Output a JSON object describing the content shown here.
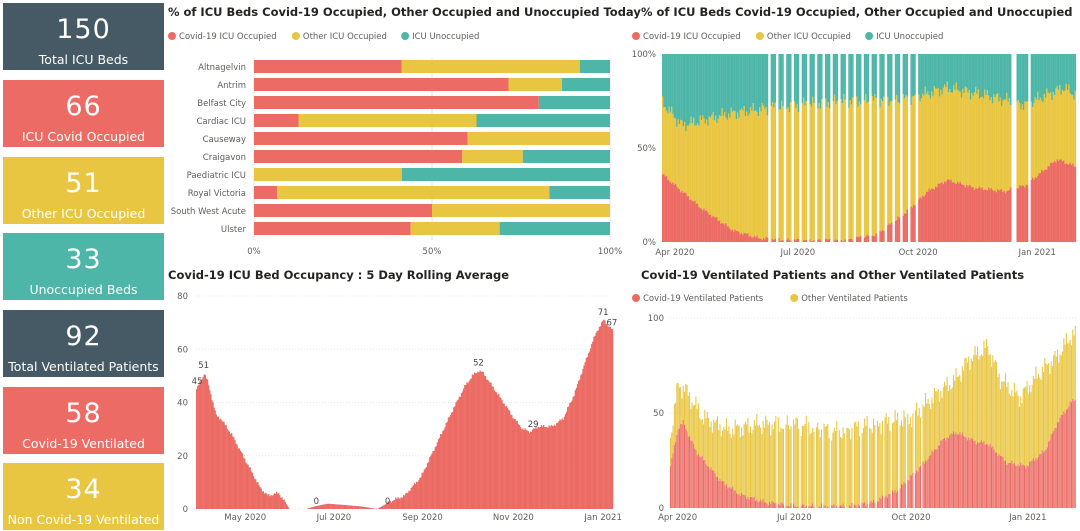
{
  "colors": {
    "covid": "#EC6B64",
    "other": "#E9C642",
    "unocc": "#4DB6A8",
    "dark": "#455A64",
    "axis": "#605E5C",
    "grid": "#E6E6E6"
  },
  "kpis": [
    {
      "value": "150",
      "label": "Total ICU Beds",
      "color": "#455A64"
    },
    {
      "value": "66",
      "label": "ICU Covid Occupied",
      "color": "#EC6B64"
    },
    {
      "value": "51",
      "label": "Other ICU Occupied",
      "color": "#E9C642"
    },
    {
      "value": "33",
      "label": "Unoccupied Beds",
      "color": "#4DB6A8"
    },
    {
      "value": "92",
      "label": "Total Ventilated Patients",
      "color": "#455A64"
    },
    {
      "value": "58",
      "label": "Covid-19 Ventilated",
      "color": "#EC6B64"
    },
    {
      "value": "34",
      "label": "Non Covid-19 Ventilated",
      "color": "#E9C642"
    }
  ],
  "legend_labels": {
    "covid_icu": "Covid-19 ICU Occupied",
    "other_icu": "Other ICU Occupied",
    "unocc_icu": "ICU Unoccupied",
    "covid_vent": "Covid-19 Ventilated Patients",
    "other_vent": "Other Ventilated Patients"
  },
  "chart_data": [
    {
      "type": "bar",
      "orientation": "horizontal-100%-stacked",
      "title": "% of ICU Beds Covid-19 Occupied, Other Occupied and Unoccupied Today",
      "categories": [
        "Altnagelvin",
        "Antrim",
        "Belfast City",
        "Cardiac ICU",
        "Causeway",
        "Craigavon",
        "Paediatric ICU",
        "Royal Victoria",
        "South West Acute",
        "Ulster"
      ],
      "series": [
        {
          "name": "Covid-19 ICU Occupied",
          "values": [
            41.5,
            71.5,
            80,
            12.5,
            60,
            58.5,
            0,
            6.5,
            50,
            44
          ]
        },
        {
          "name": "Other ICU Occupied",
          "values": [
            50,
            15,
            0,
            50,
            40,
            17,
            41.5,
            76.5,
            50,
            25
          ]
        },
        {
          "name": "ICU Unoccupied",
          "values": [
            8.5,
            13.5,
            20,
            37.5,
            0,
            24.5,
            58.5,
            17,
            0,
            31
          ]
        }
      ],
      "ticks": [
        "0%",
        "50%",
        "100%"
      ],
      "legend": "top-left"
    },
    {
      "type": "area",
      "title": "% of ICU Beds Covid-19 Occupied, Other Occupied and Unoccupied",
      "stacked": "100%",
      "series_names": [
        "Covid-19 ICU Occupied",
        "Other ICU Occupied",
        "ICU Unoccupied"
      ],
      "x_ticks": [
        "Apr 2020",
        "Jul 2020",
        "Oct 2020",
        "Jan 2021"
      ],
      "y_ticks": [
        "0%",
        "50%",
        "100%"
      ],
      "covid_pct_keypoints": [
        [
          0,
          36
        ],
        [
          10,
          30
        ],
        [
          30,
          18
        ],
        [
          55,
          6
        ],
        [
          75,
          2
        ],
        [
          100,
          1
        ],
        [
          140,
          1
        ],
        [
          165,
          4
        ],
        [
          185,
          14
        ],
        [
          205,
          27
        ],
        [
          220,
          33
        ],
        [
          240,
          29
        ],
        [
          265,
          27
        ],
        [
          280,
          30
        ],
        [
          305,
          44
        ],
        [
          320,
          40
        ]
      ],
      "occupied_pct_keypoints": [
        [
          0,
          74
        ],
        [
          15,
          62
        ],
        [
          50,
          68
        ],
        [
          90,
          72
        ],
        [
          140,
          75
        ],
        [
          190,
          76
        ],
        [
          220,
          82
        ],
        [
          250,
          78
        ],
        [
          280,
          73
        ],
        [
          310,
          82
        ],
        [
          320,
          78
        ]
      ],
      "gaps_at_day": [
        82,
        88,
        94,
        100,
        106,
        112,
        118,
        124,
        130,
        136,
        142,
        148,
        154,
        160,
        166,
        172,
        178,
        184,
        190,
        196,
        270,
        272,
        283
      ],
      "legend": "top-left"
    },
    {
      "type": "bar",
      "title": "Covid-19 ICU Bed Occupancy : 5 Day Rolling Average",
      "ylim": [
        0,
        80
      ],
      "y_ticks": [
        "0",
        "20",
        "40",
        "60",
        "80"
      ],
      "x_ticks": [
        "May 2020",
        "Jul 2020",
        "Sep 2020",
        "Nov 2020",
        "Jan 2021"
      ],
      "keypoints": [
        [
          0,
          45
        ],
        [
          5,
          49
        ],
        [
          7,
          51
        ],
        [
          10,
          48
        ],
        [
          18,
          35
        ],
        [
          22,
          34
        ],
        [
          32,
          28
        ],
        [
          45,
          18
        ],
        [
          58,
          8
        ],
        [
          65,
          5
        ],
        [
          75,
          6
        ],
        [
          85,
          0
        ],
        [
          100,
          0
        ],
        [
          108,
          1
        ],
        [
          120,
          2
        ],
        [
          150,
          1
        ],
        [
          165,
          0
        ],
        [
          178,
          3
        ],
        [
          190,
          5
        ],
        [
          205,
          12
        ],
        [
          220,
          25
        ],
        [
          235,
          38
        ],
        [
          245,
          46
        ],
        [
          252,
          50
        ],
        [
          258,
          52
        ],
        [
          262,
          51
        ],
        [
          272,
          45
        ],
        [
          282,
          39
        ],
        [
          290,
          34
        ],
        [
          298,
          30
        ],
        [
          305,
          29
        ],
        [
          312,
          31
        ],
        [
          325,
          31
        ],
        [
          335,
          34
        ],
        [
          345,
          43
        ],
        [
          355,
          55
        ],
        [
          362,
          63
        ],
        [
          366,
          67
        ],
        [
          372,
          71
        ],
        [
          376,
          69
        ],
        [
          380,
          67
        ]
      ],
      "data_labels": [
        {
          "day": 1,
          "value": 45,
          "text": "45"
        },
        {
          "day": 7,
          "value": 51,
          "text": "51"
        },
        {
          "day": 110,
          "value": 0,
          "text": "0"
        },
        {
          "day": 175,
          "value": 0,
          "text": "0"
        },
        {
          "day": 258,
          "value": 52,
          "text": "52"
        },
        {
          "day": 308,
          "value": 29,
          "text": "29"
        },
        {
          "day": 372,
          "value": 71,
          "text": "71"
        },
        {
          "day": 380,
          "value": 67,
          "text": "67"
        }
      ]
    },
    {
      "type": "bar",
      "title": "Covid-19 Ventilated Patients and Other Ventilated Patients",
      "stacked": true,
      "ylim": [
        0,
        100
      ],
      "y_ticks": [
        "0",
        "50",
        "100"
      ],
      "x_ticks": [
        "Apr 2020",
        "Jul 2020",
        "Oct 2020",
        "Jan 2021"
      ],
      "series_names": [
        "Covid-19 Ventilated Patients",
        "Other Ventilated Patients"
      ],
      "covid_keypoints": [
        [
          0,
          22
        ],
        [
          6,
          42
        ],
        [
          10,
          45
        ],
        [
          20,
          30
        ],
        [
          30,
          22
        ],
        [
          40,
          14
        ],
        [
          55,
          7
        ],
        [
          75,
          3
        ],
        [
          100,
          1
        ],
        [
          140,
          1
        ],
        [
          160,
          3
        ],
        [
          180,
          10
        ],
        [
          200,
          24
        ],
        [
          215,
          36
        ],
        [
          225,
          40
        ],
        [
          240,
          35
        ],
        [
          250,
          34
        ],
        [
          265,
          24
        ],
        [
          280,
          22
        ],
        [
          295,
          30
        ],
        [
          305,
          45
        ],
        [
          315,
          55
        ],
        [
          320,
          58
        ]
      ],
      "total_keypoints": [
        [
          0,
          38
        ],
        [
          6,
          65
        ],
        [
          12,
          62
        ],
        [
          25,
          48
        ],
        [
          45,
          41
        ],
        [
          70,
          44
        ],
        [
          100,
          44
        ],
        [
          130,
          40
        ],
        [
          160,
          44
        ],
        [
          190,
          48
        ],
        [
          210,
          60
        ],
        [
          225,
          68
        ],
        [
          235,
          78
        ],
        [
          250,
          85
        ],
        [
          260,
          68
        ],
        [
          275,
          58
        ],
        [
          292,
          72
        ],
        [
          305,
          80
        ],
        [
          315,
          90
        ],
        [
          320,
          92
        ]
      ],
      "legend": "top-left"
    }
  ]
}
